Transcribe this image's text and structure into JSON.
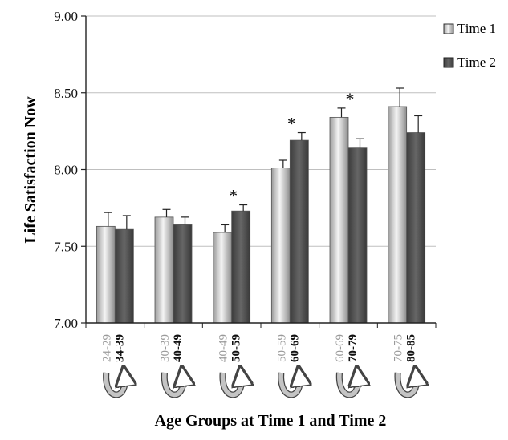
{
  "chart_data": {
    "type": "bar",
    "title": "",
    "xlabel": "Age Groups at Time 1 and Time 2",
    "ylabel": "Life Satisfaction Now",
    "ylim": [
      7.0,
      9.0
    ],
    "yticks": [
      "7.00",
      "7.50",
      "8.00",
      "8.50",
      "9.00"
    ],
    "ytick_values": [
      7.0,
      7.5,
      8.0,
      8.5,
      9.0
    ],
    "grid": true,
    "legend_position": "top-right",
    "categories": [
      {
        "time1": "24-29",
        "time2": "34-39"
      },
      {
        "time1": "30-39",
        "time2": "40-49"
      },
      {
        "time1": "40-49",
        "time2": "50-59"
      },
      {
        "time1": "50-59",
        "time2": "60-69"
      },
      {
        "time1": "60-69",
        "time2": "70-79"
      },
      {
        "time1": "70-75",
        "time2": "80-85"
      }
    ],
    "series": [
      {
        "name": "Time 1",
        "values": [
          7.63,
          7.69,
          7.59,
          8.01,
          8.34,
          8.41
        ],
        "errors": [
          0.09,
          0.05,
          0.05,
          0.05,
          0.06,
          0.12
        ],
        "color_top": "#f7f7f7",
        "color_mid": "#bdbdbd"
      },
      {
        "name": "Time 2",
        "values": [
          7.61,
          7.64,
          7.73,
          8.19,
          8.14,
          8.24
        ],
        "errors": [
          0.09,
          0.05,
          0.04,
          0.05,
          0.06,
          0.11
        ],
        "color_top": "#6d6d6d",
        "color_mid": "#4a4a4a"
      }
    ],
    "significance_marker": "*",
    "significant": [
      false,
      false,
      true,
      true,
      true,
      false
    ]
  }
}
